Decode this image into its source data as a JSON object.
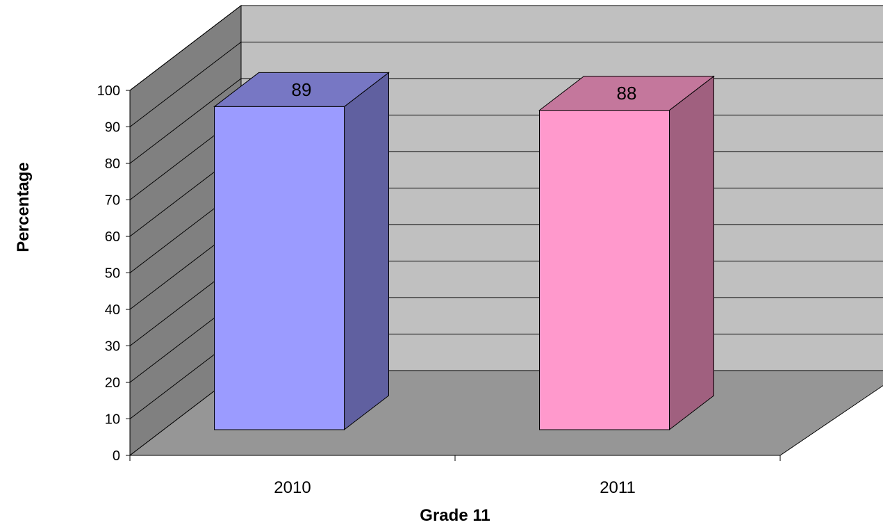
{
  "chart_data": {
    "type": "bar",
    "style": "3d-column",
    "categories": [
      "2010",
      "2011"
    ],
    "values": [
      89,
      88
    ],
    "data_labels": [
      "89",
      "88"
    ],
    "title": "",
    "xlabel": "Grade 11",
    "ylabel": "Percentage",
    "ylim": [
      0,
      100
    ],
    "yticks": [
      0,
      10,
      20,
      30,
      40,
      50,
      60,
      70,
      80,
      90,
      100
    ],
    "grid": true,
    "legend": "none",
    "colors": {
      "series": [
        {
          "front": "#9b9bff",
          "top": "#7777c4",
          "side": "#6060a0"
        },
        {
          "front": "#ff99cc",
          "top": "#c4779c",
          "side": "#a0607f"
        }
      ],
      "back_wall": "#c0c0c0",
      "side_wall": "#808080",
      "floor": "#969696"
    }
  }
}
